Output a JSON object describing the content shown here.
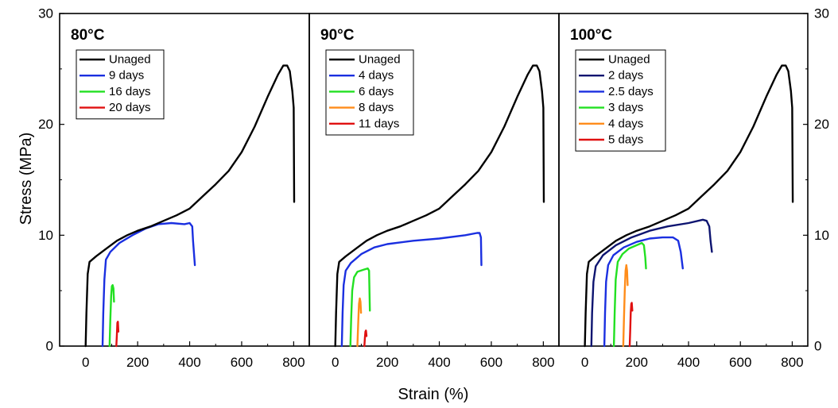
{
  "figure": {
    "xlabel": "Strain (%)",
    "ylabel": "Stress (MPa)"
  },
  "chart_data": [
    {
      "type": "line",
      "title": "80°C",
      "xlabel": "Strain (%)",
      "ylabel": "Stress (MPa)",
      "xlim": [
        -100,
        860
      ],
      "ylim": [
        0,
        30
      ],
      "xticks": [
        "0",
        "200",
        "400",
        "600",
        "800"
      ],
      "yticks": [
        "0",
        "10",
        "20",
        "30"
      ],
      "legend_position": "top-left",
      "series": [
        {
          "name": "Unaged",
          "color": "#000000",
          "points": [
            [
              0,
              0
            ],
            [
              3,
              3
            ],
            [
              8,
              6.5
            ],
            [
              15,
              7.6
            ],
            [
              40,
              8.1
            ],
            [
              80,
              8.8
            ],
            [
              120,
              9.5
            ],
            [
              160,
              10
            ],
            [
              200,
              10.4
            ],
            [
              250,
              10.8
            ],
            [
              300,
              11.3
            ],
            [
              350,
              11.8
            ],
            [
              400,
              12.4
            ],
            [
              450,
              13.5
            ],
            [
              500,
              14.6
            ],
            [
              550,
              15.8
            ],
            [
              600,
              17.5
            ],
            [
              650,
              19.8
            ],
            [
              700,
              22.5
            ],
            [
              740,
              24.5
            ],
            [
              760,
              25.3
            ],
            [
              775,
              25.3
            ],
            [
              785,
              24.8
            ],
            [
              795,
              23
            ],
            [
              800,
              21.5
            ],
            [
              802,
              13
            ]
          ]
        },
        {
          "name": "9 days",
          "color": "#1a2fe0",
          "points": [
            [
              65,
              0
            ],
            [
              68,
              3
            ],
            [
              72,
              6
            ],
            [
              78,
              7.8
            ],
            [
              95,
              8.5
            ],
            [
              130,
              9.3
            ],
            [
              180,
              10
            ],
            [
              230,
              10.6
            ],
            [
              280,
              11
            ],
            [
              330,
              11.1
            ],
            [
              380,
              11
            ],
            [
              400,
              11.1
            ],
            [
              410,
              10.8
            ],
            [
              413,
              9.5
            ],
            [
              420,
              7.3
            ]
          ]
        },
        {
          "name": "16 days",
          "color": "#22e022",
          "points": [
            [
              92,
              0
            ],
            [
              95,
              2.5
            ],
            [
              98,
              4.5
            ],
            [
              101,
              5.4
            ],
            [
              104,
              5.5
            ],
            [
              107,
              5.2
            ],
            [
              109,
              4
            ]
          ]
        },
        {
          "name": "20 days",
          "color": "#e01010",
          "points": [
            [
              118,
              0
            ],
            [
              120,
              1
            ],
            [
              122,
              2.1
            ],
            [
              124,
              2.2
            ],
            [
              126,
              1.3
            ]
          ]
        }
      ]
    },
    {
      "type": "line",
      "title": "90°C",
      "xlabel": "Strain (%)",
      "ylabel": "Stress (MPa)",
      "xlim": [
        -100,
        860
      ],
      "ylim": [
        0,
        30
      ],
      "xticks": [
        "0",
        "200",
        "400",
        "600",
        "800"
      ],
      "yticks": [
        "0",
        "10",
        "20",
        "30"
      ],
      "legend_position": "top-left",
      "series": [
        {
          "name": "Unaged",
          "color": "#000000",
          "points": [
            [
              0,
              0
            ],
            [
              3,
              3
            ],
            [
              8,
              6.5
            ],
            [
              15,
              7.6
            ],
            [
              40,
              8.1
            ],
            [
              80,
              8.8
            ],
            [
              120,
              9.5
            ],
            [
              160,
              10
            ],
            [
              200,
              10.4
            ],
            [
              250,
              10.8
            ],
            [
              300,
              11.3
            ],
            [
              350,
              11.8
            ],
            [
              400,
              12.4
            ],
            [
              450,
              13.5
            ],
            [
              500,
              14.6
            ],
            [
              550,
              15.8
            ],
            [
              600,
              17.5
            ],
            [
              650,
              19.8
            ],
            [
              700,
              22.5
            ],
            [
              740,
              24.5
            ],
            [
              760,
              25.3
            ],
            [
              775,
              25.3
            ],
            [
              785,
              24.8
            ],
            [
              795,
              23
            ],
            [
              800,
              21.5
            ],
            [
              802,
              13
            ]
          ]
        },
        {
          "name": "4 days",
          "color": "#1a2fe0",
          "points": [
            [
              25,
              0
            ],
            [
              28,
              3
            ],
            [
              32,
              5.5
            ],
            [
              40,
              6.8
            ],
            [
              60,
              7.5
            ],
            [
              100,
              8.3
            ],
            [
              150,
              8.9
            ],
            [
              200,
              9.2
            ],
            [
              300,
              9.5
            ],
            [
              400,
              9.7
            ],
            [
              500,
              10
            ],
            [
              545,
              10.2
            ],
            [
              555,
              10.2
            ],
            [
              560,
              9.8
            ],
            [
              562,
              7.3
            ]
          ]
        },
        {
          "name": "6 days",
          "color": "#22e022",
          "points": [
            [
              58,
              0
            ],
            [
              61,
              2.5
            ],
            [
              65,
              5
            ],
            [
              72,
              6.2
            ],
            [
              85,
              6.7
            ],
            [
              110,
              6.9
            ],
            [
              125,
              7
            ],
            [
              130,
              6.8
            ],
            [
              133,
              3.2
            ]
          ]
        },
        {
          "name": "8 days",
          "color": "#ff8c1a",
          "points": [
            [
              85,
              0
            ],
            [
              88,
              2
            ],
            [
              91,
              3.8
            ],
            [
              94,
              4.3
            ],
            [
              97,
              4
            ],
            [
              99,
              3
            ]
          ]
        },
        {
          "name": "11 days",
          "color": "#e01010",
          "points": [
            [
              112,
              0
            ],
            [
              114,
              0.8
            ],
            [
              116,
              1.3
            ],
            [
              118,
              1.4
            ],
            [
              120,
              0.9
            ]
          ]
        }
      ]
    },
    {
      "type": "line",
      "title": "100°C",
      "xlabel": "Strain (%)",
      "ylabel": "Stress (MPa)",
      "xlim": [
        -100,
        860
      ],
      "ylim": [
        0,
        30
      ],
      "xticks": [
        "0",
        "200",
        "400",
        "600",
        "800"
      ],
      "yticks": [
        "0",
        "10",
        "20",
        "30"
      ],
      "legend_position": "top-left",
      "series": [
        {
          "name": "Unaged",
          "color": "#000000",
          "points": [
            [
              0,
              0
            ],
            [
              3,
              3
            ],
            [
              8,
              6.5
            ],
            [
              15,
              7.6
            ],
            [
              40,
              8.1
            ],
            [
              80,
              8.8
            ],
            [
              120,
              9.5
            ],
            [
              160,
              10
            ],
            [
              200,
              10.4
            ],
            [
              250,
              10.8
            ],
            [
              300,
              11.3
            ],
            [
              350,
              11.8
            ],
            [
              400,
              12.4
            ],
            [
              450,
              13.5
            ],
            [
              500,
              14.6
            ],
            [
              550,
              15.8
            ],
            [
              600,
              17.5
            ],
            [
              650,
              19.8
            ],
            [
              700,
              22.5
            ],
            [
              740,
              24.5
            ],
            [
              760,
              25.3
            ],
            [
              775,
              25.3
            ],
            [
              785,
              24.8
            ],
            [
              795,
              23
            ],
            [
              800,
              21.5
            ],
            [
              802,
              13
            ]
          ]
        },
        {
          "name": "2 days",
          "color": "#0d1470",
          "points": [
            [
              25,
              0
            ],
            [
              28,
              3
            ],
            [
              33,
              5.8
            ],
            [
              42,
              7.2
            ],
            [
              70,
              8.2
            ],
            [
              120,
              9.1
            ],
            [
              180,
              9.8
            ],
            [
              250,
              10.4
            ],
            [
              320,
              10.8
            ],
            [
              400,
              11.1
            ],
            [
              455,
              11.4
            ],
            [
              470,
              11.3
            ],
            [
              480,
              10.8
            ],
            [
              485,
              9.5
            ],
            [
              490,
              8.5
            ]
          ]
        },
        {
          "name": "2.5 days",
          "color": "#1a2fe0",
          "points": [
            [
              75,
              0
            ],
            [
              78,
              3
            ],
            [
              82,
              5.8
            ],
            [
              90,
              7.3
            ],
            [
              110,
              8.2
            ],
            [
              150,
              8.9
            ],
            [
              200,
              9.4
            ],
            [
              250,
              9.7
            ],
            [
              300,
              9.8
            ],
            [
              340,
              9.8
            ],
            [
              360,
              9.5
            ],
            [
              370,
              8.5
            ],
            [
              378,
              7
            ]
          ]
        },
        {
          "name": "3 days",
          "color": "#22e022",
          "points": [
            [
              112,
              0
            ],
            [
              115,
              3
            ],
            [
              119,
              6
            ],
            [
              127,
              7.6
            ],
            [
              145,
              8.3
            ],
            [
              170,
              8.8
            ],
            [
              200,
              9.1
            ],
            [
              220,
              9.3
            ],
            [
              228,
              9.1
            ],
            [
              233,
              8
            ],
            [
              236,
              7
            ]
          ]
        },
        {
          "name": "4 days",
          "color": "#ff8c1a",
          "points": [
            [
              148,
              0
            ],
            [
              151,
              2.5
            ],
            [
              154,
              5
            ],
            [
              157,
              6.8
            ],
            [
              160,
              7.3
            ],
            [
              163,
              6.8
            ],
            [
              165,
              5.5
            ]
          ]
        },
        {
          "name": "5 days",
          "color": "#e01010",
          "points": [
            [
              173,
              0
            ],
            [
              175,
              1.5
            ],
            [
              177,
              3
            ],
            [
              179,
              3.8
            ],
            [
              181,
              3.9
            ],
            [
              183,
              3.2
            ]
          ]
        }
      ]
    }
  ]
}
